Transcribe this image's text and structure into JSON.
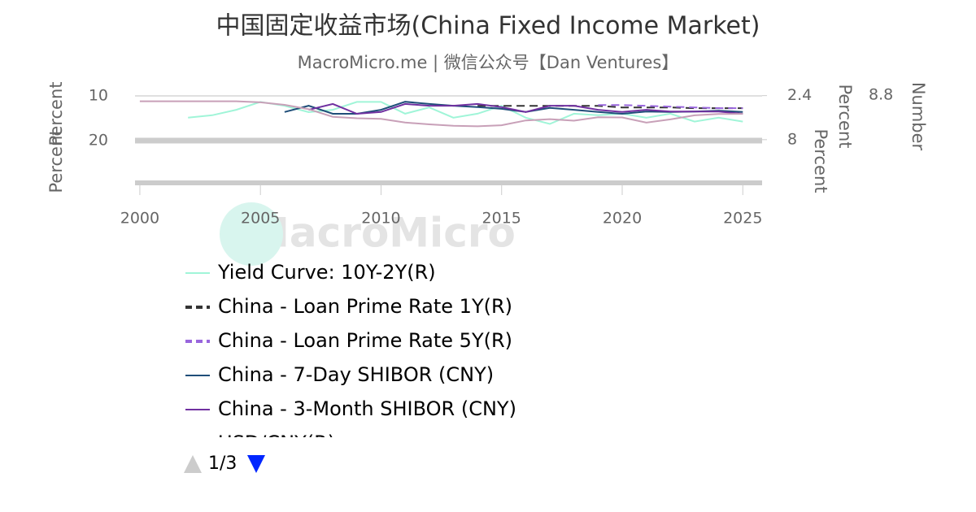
{
  "chart_data": {
    "type": "line",
    "title": "中国固定收益市场(China Fixed Income Market)",
    "subtitle": "MacroMicro.me | 微信公众号【Dan Ventures】",
    "watermark": "MacroMicro",
    "x": [
      2000,
      2001,
      2002,
      2003,
      2004,
      2005,
      2006,
      2007,
      2008,
      2009,
      2010,
      2011,
      2012,
      2013,
      2014,
      2015,
      2016,
      2017,
      2018,
      2019,
      2020,
      2021,
      2022,
      2023,
      2024,
      2025
    ],
    "xlim": [
      1999.8,
      2025.8
    ],
    "xticks": [
      2000,
      2005,
      2010,
      2015,
      2020,
      2025
    ],
    "ylim": [
      30,
      8
    ],
    "yticks": [
      10,
      20
    ],
    "y_label": "Percent",
    "lower_y_label": "Percent",
    "y2lim": [
      13.8,
      1.3
    ],
    "y2ticks": [
      2.4,
      8
    ],
    "y2_label": "Percent",
    "lower_y2_label": "Percent",
    "y3lim": [
      1.1,
      9.5
    ],
    "y3ticks": [
      8.8
    ],
    "y3_label": "Number",
    "grid": true,
    "legend_page": "1/3",
    "series": [
      {
        "name": "Yield Curve: 10Y-2Y(R)",
        "color": "#a0f5d8",
        "axis": "y2",
        "dash": false,
        "values": [
          null,
          null,
          5.2,
          4.9,
          4.2,
          3.2,
          3.7,
          4.5,
          4.2,
          3.2,
          3.2,
          4.7,
          3.9,
          5.2,
          4.7,
          3.7,
          5.2,
          6.0,
          4.7,
          4.9,
          4.7,
          5.2,
          4.7,
          5.7,
          5.2,
          5.7
        ]
      },
      {
        "name": "China - Loan Prime Rate 1Y(R)",
        "color": "#333333",
        "axis": "y2",
        "dash": true,
        "values": [
          null,
          null,
          null,
          null,
          null,
          null,
          null,
          null,
          null,
          null,
          null,
          null,
          null,
          null,
          3.7,
          3.7,
          3.7,
          3.7,
          3.7,
          3.7,
          3.9,
          3.9,
          3.9,
          4.0,
          4.0,
          4.0
        ]
      },
      {
        "name": "China - Loan Prime Rate 5Y(R)",
        "color": "#9966dd",
        "axis": "y2",
        "dash": true,
        "values": [
          null,
          null,
          null,
          null,
          null,
          null,
          null,
          null,
          null,
          null,
          null,
          null,
          null,
          null,
          null,
          null,
          null,
          null,
          null,
          3.6,
          3.6,
          3.7,
          3.8,
          3.9,
          4.0,
          4.0
        ]
      },
      {
        "name": "China - 7-Day SHIBOR (CNY)",
        "color": "#1f4e79",
        "axis": "y",
        "dash": false,
        "values": [
          null,
          null,
          null,
          null,
          null,
          null,
          13.6,
          12.2,
          14,
          14,
          13.1,
          11.3,
          11.8,
          12.2,
          12.5,
          12.9,
          13.6,
          12.7,
          13.1,
          13.6,
          14,
          13.5,
          13.6,
          13.5,
          13.3,
          13.6
        ]
      },
      {
        "name": "China - 3-Month SHIBOR (CNY)",
        "color": "#7030a0",
        "axis": "y",
        "dash": false,
        "values": [
          null,
          null,
          null,
          null,
          null,
          null,
          null,
          13.1,
          11.8,
          14,
          13.6,
          11.8,
          12.2,
          12.2,
          11.8,
          12.5,
          13.6,
          12.2,
          12.2,
          13.1,
          13.6,
          13.1,
          13.5,
          13.5,
          13.5,
          14
        ]
      },
      {
        "name": "USD/CNY(R)",
        "color": "#c8a0b8",
        "axis": "y3",
        "dash": false,
        "values": [
          8.28,
          8.28,
          8.28,
          8.28,
          8.28,
          8.19,
          7.97,
          7.6,
          6.95,
          6.83,
          6.77,
          6.46,
          6.31,
          6.19,
          6.14,
          6.23,
          6.64,
          6.75,
          6.62,
          6.91,
          6.9,
          6.45,
          6.73,
          7.08,
          7.19,
          7.2
        ]
      }
    ]
  }
}
